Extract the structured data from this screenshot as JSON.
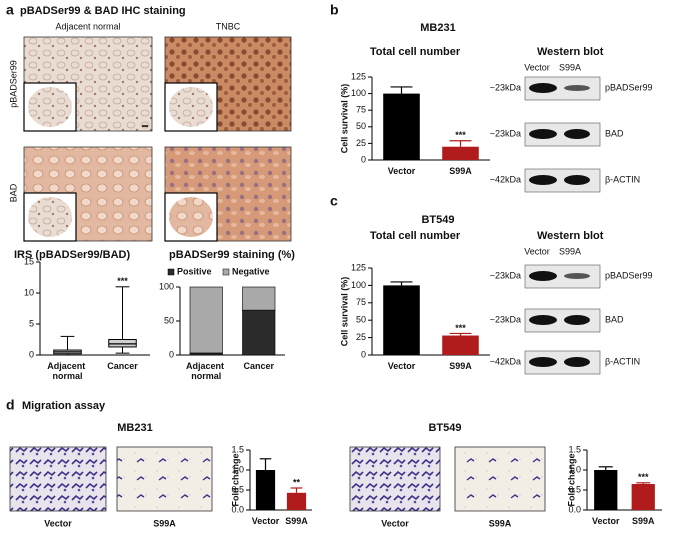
{
  "panel_a": {
    "label": "a",
    "title": "pBADSer99 & BAD IHC staining",
    "columns": [
      "Adjacent normal",
      "TNBC"
    ],
    "rows": [
      "pBADSer99",
      "BAD"
    ]
  },
  "panel_b": {
    "label": "b",
    "cell_line": "MB231",
    "western_title": "Western blot",
    "lanes": [
      "Vector",
      "S99A"
    ],
    "sizes": [
      "~23kDa",
      "~23kDa",
      "~42kDa"
    ],
    "proteins": [
      "pBADSer99",
      "BAD",
      "β-ACTIN"
    ]
  },
  "panel_c": {
    "label": "c",
    "cell_line": "BT549",
    "western_title": "Western blot",
    "lanes": [
      "Vector",
      "S99A"
    ],
    "sizes": [
      "~23kDa",
      "~23kDa",
      "~42kDa"
    ],
    "proteins": [
      "pBADSer99",
      "BAD",
      "β-ACTIN"
    ]
  },
  "panel_d": {
    "label": "d",
    "title": "Migration assay",
    "cell_lines": [
      "MB231",
      "BT549"
    ],
    "image_labels": [
      "Vector",
      "S99A",
      "Vector",
      "S99A"
    ]
  },
  "chart_data": [
    {
      "type": "box",
      "title": "IRS (pBADSer99/BAD)",
      "categories": [
        "Adjacent normal",
        "Cancer"
      ],
      "boxes": [
        {
          "min": 0,
          "q1": 0.2,
          "median": 0.5,
          "q3": 0.8,
          "max": 3
        },
        {
          "min": 0.3,
          "q1": 1.3,
          "median": 1.8,
          "q3": 2.5,
          "max": 11
        }
      ],
      "annotation": "***",
      "ylim": [
        0,
        15
      ],
      "yticks": [
        0,
        5,
        10,
        15
      ]
    },
    {
      "type": "stacked_bar",
      "title": "pBADSer99 staining (%)",
      "categories": [
        "Adjacent normal",
        "Cancer"
      ],
      "series": [
        {
          "name": "Positive",
          "color": "#2b2b2b",
          "values": [
            3,
            66
          ]
        },
        {
          "name": "Negative",
          "color": "#a9a9a9",
          "values": [
            97,
            34
          ]
        }
      ],
      "ylim": [
        0,
        100
      ],
      "yticks": [
        0,
        50,
        100
      ]
    },
    {
      "type": "bar",
      "title": "Total cell number",
      "y_label": "Cell survival (%)",
      "categories": [
        "Vector",
        "S99A"
      ],
      "values": [
        100,
        20
      ],
      "errors": [
        10,
        9
      ],
      "colors": [
        "#000000",
        "#b01c1c"
      ],
      "annotation": "***",
      "ylim": [
        0,
        125
      ],
      "yticks": [
        0,
        25,
        50,
        75,
        100,
        125
      ]
    },
    {
      "type": "bar",
      "title": "Total cell number",
      "y_label": "Cell survival (%)",
      "categories": [
        "Vector",
        "S99A"
      ],
      "values": [
        100,
        28
      ],
      "errors": [
        5,
        3
      ],
      "colors": [
        "#000000",
        "#b01c1c"
      ],
      "annotation": "***",
      "ylim": [
        0,
        125
      ],
      "yticks": [
        0,
        25,
        50,
        75,
        100,
        125
      ]
    },
    {
      "type": "bar",
      "y_label": "Fold change",
      "categories": [
        "Vector",
        "S99A"
      ],
      "values": [
        1.0,
        0.43
      ],
      "errors": [
        0.28,
        0.12
      ],
      "colors": [
        "#000000",
        "#b01c1c"
      ],
      "annotation": "**",
      "ylim": [
        0,
        1.5
      ],
      "yticks": [
        {
          "value": 0,
          "label": "0.0"
        },
        0.5,
        {
          "value": 1,
          "label": "1.0"
        },
        1.5
      ]
    },
    {
      "type": "bar",
      "y_label": "Fold change",
      "categories": [
        "Vector",
        "S99A"
      ],
      "values": [
        1.0,
        0.65
      ],
      "errors": [
        0.08,
        0.03
      ],
      "colors": [
        "#000000",
        "#b01c1c"
      ],
      "annotation": "***",
      "ylim": [
        0,
        1.5
      ],
      "yticks": [
        {
          "value": 0,
          "label": "0.0"
        },
        0.5,
        {
          "value": 1,
          "label": "1.0"
        },
        1.5
      ]
    }
  ]
}
